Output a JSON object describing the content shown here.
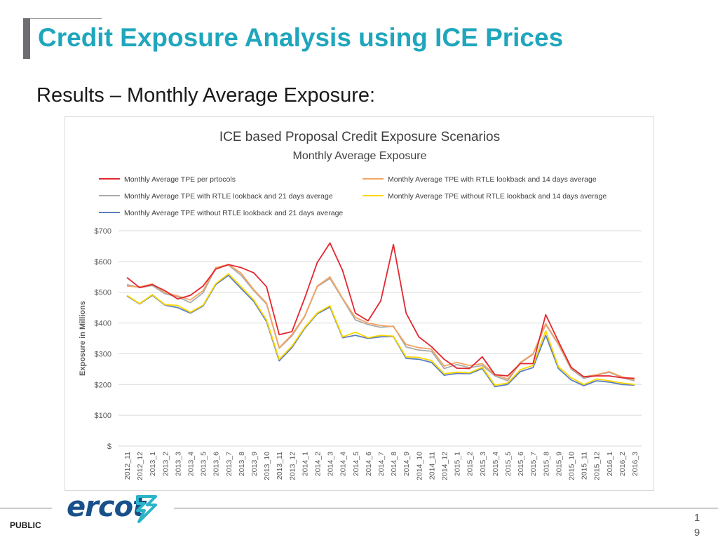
{
  "slide": {
    "title": "Credit Exposure Analysis using ICE Prices",
    "subtitle": "Results – Monthly Average Exposure:",
    "footer_label": "PUBLIC",
    "page_number_line1": "1",
    "page_number_line2": "9",
    "logo_text": "ercot",
    "colors": {
      "title": "#1fa6bd",
      "logo": "#17508a",
      "logo_mark": "#2bb3c6"
    }
  },
  "chart_data": {
    "type": "line",
    "title": "ICE based Proposal Credit Exposure Scenarios",
    "subtitle": "Monthly Average Exposure",
    "ylabel": "Exposure in Millions",
    "xlabel": "",
    "ylim": [
      0,
      700
    ],
    "yticks": [
      0,
      100,
      200,
      300,
      400,
      500,
      600,
      700
    ],
    "ytick_labels": [
      "$",
      "$100",
      "$200",
      "$300",
      "$400",
      "$500",
      "$600",
      "$700"
    ],
    "grid": true,
    "legend_position": "top",
    "categories": [
      "2012_11",
      "2012_12",
      "2013_1",
      "2013_2",
      "2013_3",
      "2013_4",
      "2013_5",
      "2013_6",
      "2013_7",
      "2013_8",
      "2013_9",
      "2013_10",
      "2013_11",
      "2013_12",
      "2014_1",
      "2014_2",
      "2014_3",
      "2014_4",
      "2014_5",
      "2014_6",
      "2014_7",
      "2014_8",
      "2014_9",
      "2014_10",
      "2014_11",
      "2014_12",
      "2015_1",
      "2015_2",
      "2015_3",
      "2015_4",
      "2015_5",
      "2015_6",
      "2015_7",
      "2015_8",
      "2015_9",
      "2015_10",
      "2015_11",
      "2015_12",
      "2016_1",
      "2016_2",
      "2016_3"
    ],
    "series": [
      {
        "name": "Monthly Average TPE per prtocols",
        "color": "#e3262e",
        "values": [
          548,
          515,
          525,
          505,
          478,
          490,
          520,
          575,
          590,
          580,
          563,
          518,
          362,
          372,
          480,
          597,
          660,
          570,
          432,
          407,
          472,
          655,
          432,
          355,
          323,
          282,
          253,
          252,
          290,
          232,
          228,
          268,
          268,
          427,
          340,
          256,
          225,
          228,
          228,
          222,
          220
        ]
      },
      {
        "name": "Monthly Average TPE with RTLE lookback and 14 days average",
        "color": "#f4a460",
        "values": [
          520,
          517,
          527,
          500,
          488,
          475,
          505,
          580,
          590,
          562,
          508,
          465,
          320,
          362,
          422,
          520,
          550,
          480,
          418,
          400,
          392,
          388,
          330,
          320,
          315,
          260,
          272,
          262,
          268,
          232,
          218,
          272,
          300,
          398,
          332,
          253,
          225,
          232,
          242,
          225,
          215
        ]
      },
      {
        "name": "Monthly Average TPE with RTLE lookback and 21 days average",
        "color": "#aaaaaa",
        "values": [
          525,
          515,
          522,
          495,
          485,
          466,
          498,
          578,
          588,
          555,
          505,
          462,
          318,
          358,
          420,
          518,
          545,
          478,
          410,
          395,
          386,
          390,
          322,
          312,
          308,
          252,
          265,
          255,
          262,
          228,
          212,
          270,
          298,
          395,
          330,
          250,
          220,
          230,
          240,
          222,
          212
        ]
      },
      {
        "name": "Monthly Average TPE without RTLE lookback and 14 days average",
        "color": "#ffd700",
        "values": [
          490,
          463,
          492,
          460,
          457,
          435,
          458,
          528,
          560,
          518,
          475,
          410,
          282,
          325,
          385,
          433,
          456,
          355,
          370,
          352,
          360,
          357,
          290,
          288,
          278,
          235,
          240,
          238,
          256,
          198,
          205,
          248,
          262,
          375,
          258,
          222,
          200,
          218,
          212,
          205,
          200
        ]
      },
      {
        "name": "Monthly Average TPE without RTLE lookback and 21 days average",
        "color": "#5b7fc0",
        "values": [
          488,
          462,
          490,
          458,
          450,
          432,
          455,
          525,
          555,
          512,
          470,
          405,
          277,
          320,
          382,
          430,
          452,
          352,
          360,
          350,
          355,
          356,
          285,
          282,
          272,
          230,
          236,
          235,
          252,
          193,
          200,
          242,
          255,
          360,
          252,
          215,
          196,
          212,
          208,
          200,
          198
        ]
      }
    ]
  }
}
